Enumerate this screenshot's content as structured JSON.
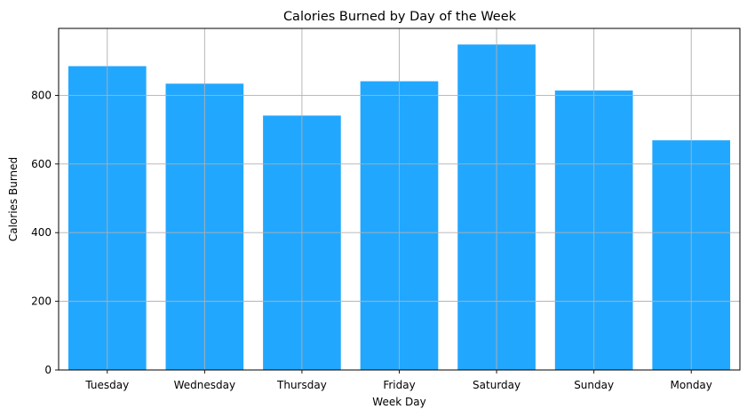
{
  "chart_data": {
    "type": "bar",
    "title": "Calories Burned by Day of the Week",
    "xlabel": "Week Day",
    "ylabel": "Calories Burned",
    "categories": [
      "Tuesday",
      "Wednesday",
      "Thursday",
      "Friday",
      "Saturday",
      "Sunday",
      "Monday"
    ],
    "values": [
      885,
      834,
      741,
      841,
      948,
      814,
      669
    ],
    "ylim": [
      0,
      995
    ],
    "yticks": [
      0,
      200,
      400,
      600,
      800
    ],
    "grid": true,
    "bar_color": "#22a7ff",
    "legend": "none"
  }
}
